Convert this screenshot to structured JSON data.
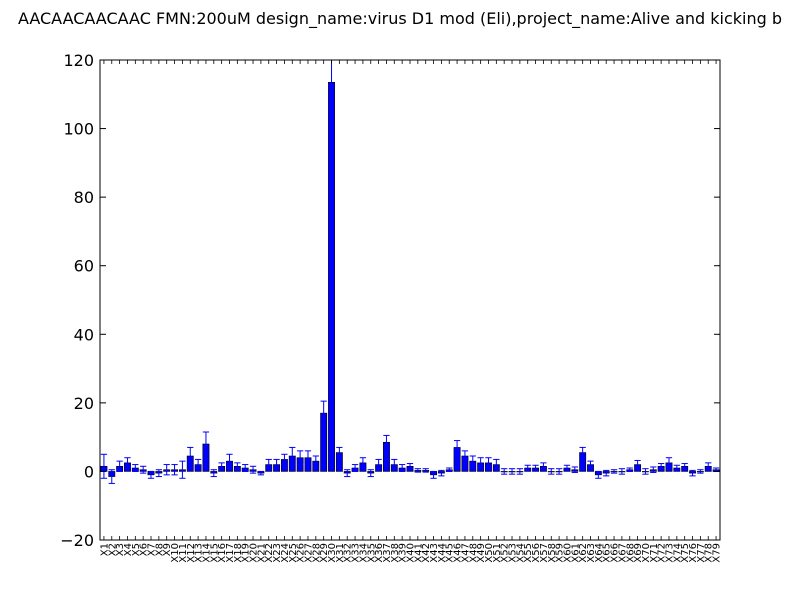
{
  "chart_data": {
    "type": "bar",
    "title": "AACAACAACAAC  FMN:200uM  design_name:virus D1 mod (Eli),project_name:Alive and kicking b",
    "xlabel": "",
    "ylabel": "",
    "ylim": [
      -20,
      120
    ],
    "yticks": [
      -20,
      0,
      20,
      40,
      60,
      80,
      100,
      120
    ],
    "ytick_labels": [
      "−20",
      "0",
      "20",
      "40",
      "60",
      "80",
      "100",
      "120"
    ],
    "grid": false,
    "bar_color": "#0000ff",
    "error_color": "#0000ff",
    "categories": [
      "X1",
      "X2",
      "X3",
      "X4",
      "X5",
      "X6",
      "X7",
      "X8",
      "X9",
      "X10",
      "X11",
      "X12",
      "X13",
      "X14",
      "X15",
      "X16",
      "X17",
      "X18",
      "X19",
      "X20",
      "X21",
      "X22",
      "X23",
      "X24",
      "X25",
      "X26",
      "X27",
      "X28",
      "X29",
      "X30",
      "X31",
      "X32",
      "X33",
      "X34",
      "X35",
      "X36",
      "X37",
      "X38",
      "X39",
      "X40",
      "X41",
      "X42",
      "X43",
      "X44",
      "X45",
      "X46",
      "X47",
      "X48",
      "X49",
      "X50",
      "X51",
      "X52",
      "X53",
      "X54",
      "X55",
      "X56",
      "X57",
      "X58",
      "X59",
      "X60",
      "X61",
      "X62",
      "X63",
      "X64",
      "X65",
      "X66",
      "X67",
      "X68",
      "X69",
      "X70",
      "X71",
      "X72",
      "X73",
      "X74",
      "X75",
      "X76",
      "X77",
      "X78",
      "X79"
    ],
    "values": [
      1.5,
      -1.5,
      1.5,
      2.5,
      1,
      0.5,
      -1,
      -0.5,
      0.5,
      0.5,
      0.5,
      4.5,
      2,
      8,
      -0.5,
      1.5,
      3,
      1.5,
      1,
      0.5,
      -0.5,
      2,
      2,
      3.5,
      4.5,
      4,
      4,
      3,
      17,
      113.5,
      5.5,
      -0.5,
      1,
      2.5,
      -0.5,
      2,
      8.5,
      2,
      1,
      1.5,
      0.3,
      0.3,
      -1,
      -0.5,
      0.5,
      7,
      4.5,
      3,
      2.5,
      2.5,
      2,
      0,
      0,
      0,
      1,
      1,
      1.5,
      0,
      0,
      1,
      0.5,
      5.5,
      2,
      -1,
      -0.5,
      0,
      0,
      0.5,
      2,
      0,
      0.5,
      1.5,
      2.5,
      1,
      1.5,
      -0.5,
      0,
      1.5,
      0.5
    ],
    "errors": [
      3.5,
      2,
      1.5,
      1.5,
      1,
      1,
      1,
      1,
      1.5,
      1.5,
      2.5,
      2.5,
      1.5,
      3.5,
      1,
      1,
      2,
      1,
      1,
      1,
      0.5,
      1.5,
      1.5,
      1.5,
      2.5,
      2,
      2,
      1.5,
      3.5,
      7,
      1.5,
      1,
      1,
      1.5,
      1,
      1.5,
      2,
      1.5,
      1,
      0.8,
      0.5,
      0.5,
      1,
      0.8,
      0.5,
      2,
      1.5,
      1.5,
      1.5,
      1.5,
      1.5,
      0.8,
      0.8,
      0.8,
      0.8,
      0.8,
      1,
      0.8,
      0.8,
      0.8,
      0.8,
      1.5,
      1,
      1,
      0.8,
      0.5,
      0.8,
      0.5,
      1.2,
      0.8,
      0.8,
      0.8,
      1.5,
      0.8,
      0.8,
      0.8,
      0.5,
      1,
      0.5
    ]
  }
}
